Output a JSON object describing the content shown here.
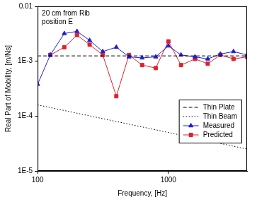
{
  "chart_data": {
    "type": "line",
    "log": true,
    "grid": false,
    "legend": "lower right",
    "x_label": "Frequency, [Hz]",
    "y_label": "Real Part of Mobility, [m/Ns]",
    "annotation": [
      "20 cm from Rib",
      "position E"
    ],
    "xlim": [
      100,
      4000
    ],
    "xticks": [
      100,
      1000
    ],
    "ylim": [
      1e-05,
      0.01
    ],
    "yticks": [
      {
        "value": 1e-05,
        "label": "1E-5"
      },
      {
        "value": 0.0001,
        "label": "1E-4"
      },
      {
        "value": 0.001,
        "label": "1E-3"
      },
      0.01
    ],
    "series": [
      {
        "name": "Thin Plate",
        "color": "#000000",
        "line_style": "dashed",
        "marker": "none",
        "x": [
          100,
          4000
        ],
        "values": [
          0.00125,
          0.00125
        ]
      },
      {
        "name": "Thin Beam",
        "color": "#000000",
        "line_style": "dotted",
        "marker": "none",
        "x": [
          100,
          4000
        ],
        "values": [
          0.00016,
          2.5e-05
        ]
      },
      {
        "name": "Measured",
        "color": "#1f1fd0",
        "line_style": "solid",
        "marker": "triangle",
        "x": [
          100,
          125,
          160,
          200,
          250,
          315,
          400,
          500,
          630,
          800,
          1000,
          1250,
          1600,
          2000,
          2500,
          3150,
          4000
        ],
        "values": [
          0.00038,
          0.0013,
          0.0032,
          0.0035,
          0.0024,
          0.0015,
          0.0018,
          0.0012,
          0.00115,
          0.0012,
          0.0019,
          0.0013,
          0.0012,
          0.0011,
          0.00135,
          0.0015,
          0.0013
        ]
      },
      {
        "name": "Predicted",
        "color": "#e0202a",
        "line_style": "solid",
        "marker": "square",
        "x": [
          100,
          125,
          160,
          200,
          250,
          315,
          400,
          500,
          630,
          800,
          1000,
          1250,
          1600,
          2000,
          2500,
          3150,
          4000
        ],
        "values": [
          null,
          0.0013,
          0.0018,
          0.003,
          0.002,
          0.0013,
          0.00023,
          0.0013,
          0.00085,
          0.00075,
          0.0023,
          0.00085,
          0.0011,
          0.0009,
          0.0013,
          0.0011,
          0.0012
        ]
      }
    ]
  }
}
